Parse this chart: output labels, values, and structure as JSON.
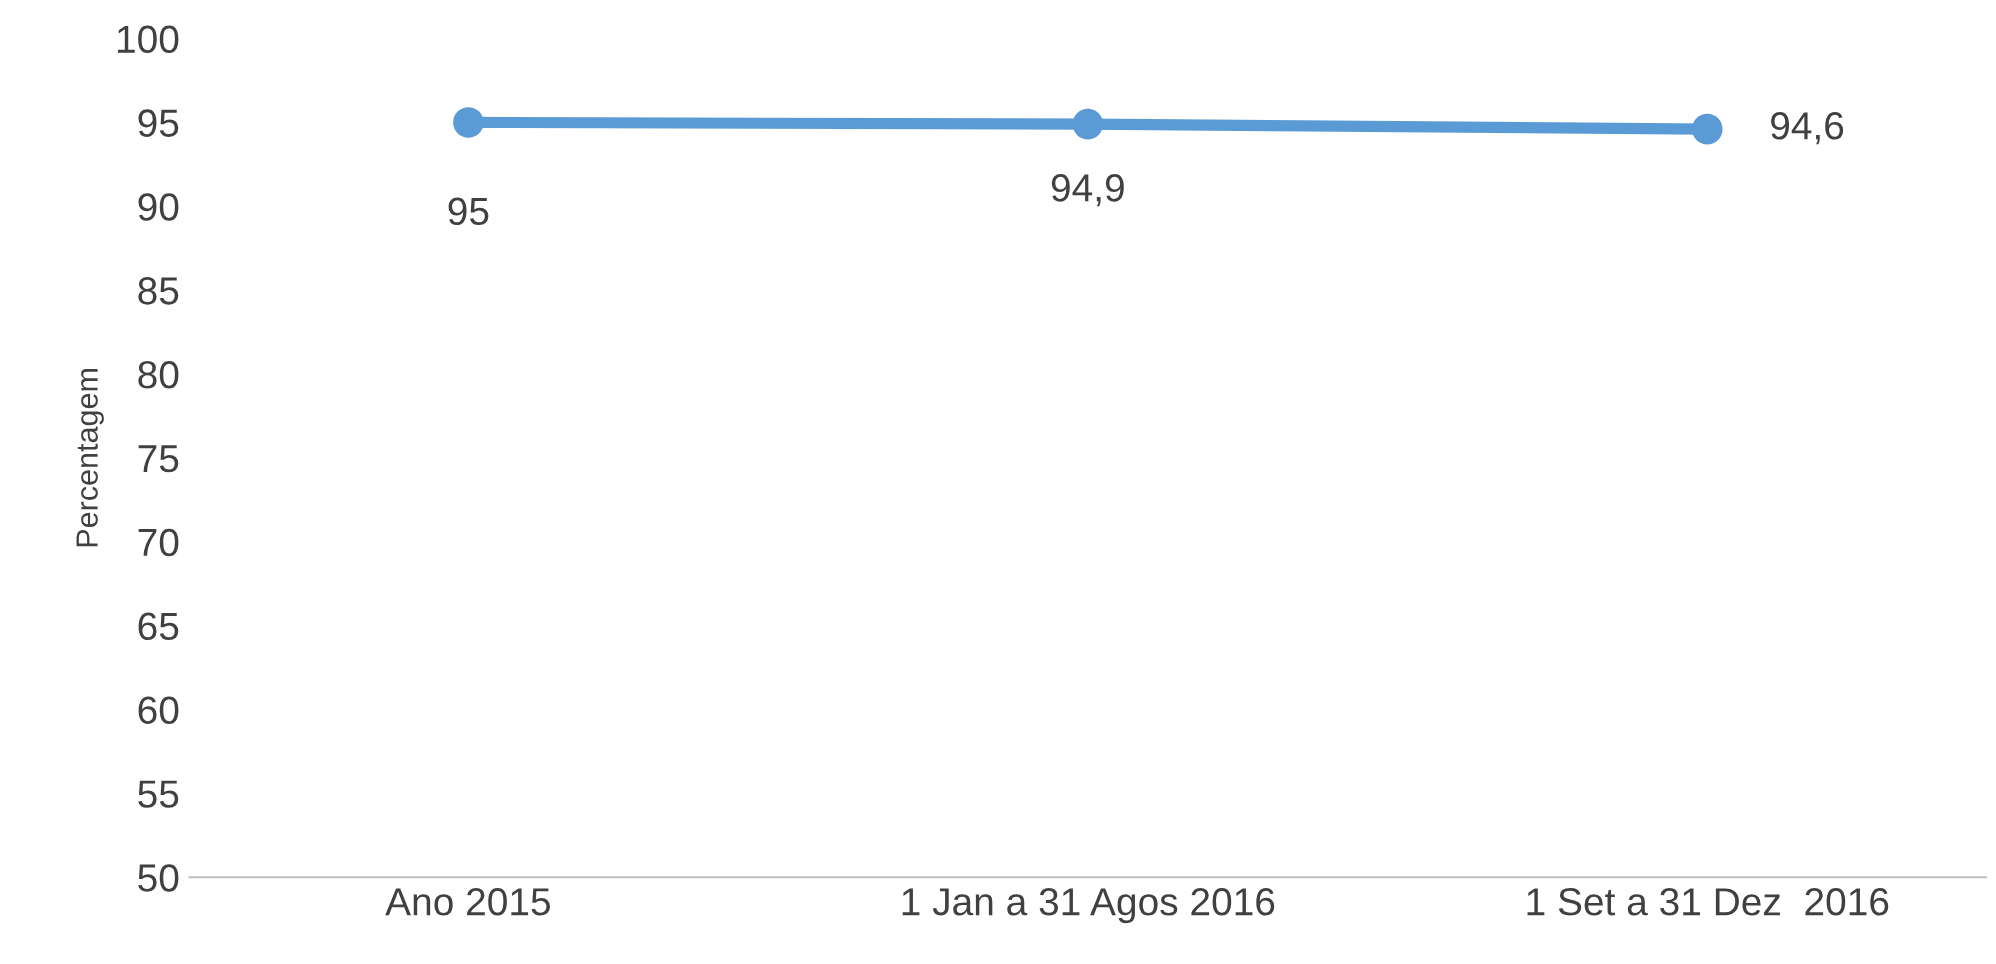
{
  "chart_data": {
    "type": "line",
    "ylabel": "Percentagem",
    "categories": [
      "Ano 2015",
      "1 Jan a 31 Agos 2016",
      "1 Set a 31 Dez  2016"
    ],
    "series": [
      {
        "color": "#5b9bd5",
        "values": [
          95,
          94.9,
          94.6
        ],
        "value_labels": [
          "95",
          "94,9",
          "94,6"
        ]
      }
    ],
    "ylim": [
      50,
      100
    ],
    "yticks": [
      50,
      55,
      60,
      65,
      70,
      75,
      80,
      85,
      90,
      95,
      100
    ],
    "marker": "circle",
    "line_style": "solid",
    "grid": false,
    "legend": false
  }
}
